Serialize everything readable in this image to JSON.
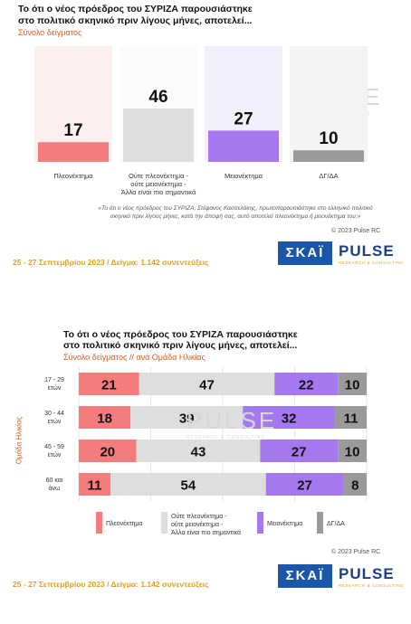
{
  "chart1": {
    "title_line1": "Το ότι ο νέος πρόεδρος του ΣΥΡΙΖΑ παρουσιάστηκε",
    "title_line2": "στο πολιτικό σκηνικό πριν λίγους μήνες, αποτελεί...",
    "subtitle": "Σύνολο δείγματος",
    "footnote_line1": "«Το ότι ο νέος πρόεδρος του ΣΥΡΙΖΑ, Στέφανος Κασσελάκης, πρωτοπαρουσιάστηκε στο ελληνικό πολιτικό",
    "footnote_line2": "σκηνικό πριν λίγους μήνες, κατά την άποψή σας, αυτό αποτελεί πλεονέκτημα ή μειονέκτημα του;»",
    "copyright": "© 2023 Pulse RC"
  },
  "chart2": {
    "title_line1": "Το ότι ο νέος πρόεδρος του ΣΥΡΙΖΑ παρουσιάστηκε",
    "title_line2": "στο πολιτικό σκηνικό πριν λίγους μήνες, αποτελεί...",
    "subtitle": "Σύνολο δείγματος // ανά Ομάδα Ηλικίας",
    "axis_group_label": "Ομάδα Ηλικίας",
    "copyright": "© 2023 Pulse RC"
  },
  "footer": {
    "date_text": "25 - 27 Σεπτεμβρίου 2023 / Δείγμα: 1.142 συνεντεύξεις"
  },
  "logos": {
    "skai": "ΣΚΑΪ",
    "pulse": "PULSE",
    "pulse_sub": "RESEARCH & CONSULTING"
  },
  "watermark": {
    "text": "PULSE",
    "sub": "RESEARCH & CONSULTING"
  },
  "colors": {
    "advantage": "#f47c7c",
    "neither": "#dedede",
    "disadvantage": "#a678f0",
    "dk": "#9a9a9a"
  },
  "chart_data": [
    {
      "type": "bar",
      "categories": [
        "Πλεονέκτημα",
        "Ούτε πλεονέκτημα - ούτε μειονέκτημα - Άλλα είναι πιο σημαντικά",
        "Μειονέκτημα",
        "ΔΓ/ΔΑ"
      ],
      "category_lines": [
        [
          "Πλεονέκτημα"
        ],
        [
          "Ούτε πλεονέκτημα -",
          "ούτε μειονέκτημα -",
          "Άλλα είναι πιο σημαντικά"
        ],
        [
          "Μειονέκτημα"
        ],
        [
          "ΔΓ/ΔΑ"
        ]
      ],
      "values": [
        17,
        46,
        27,
        10
      ],
      "ylim": [
        0,
        100
      ]
    },
    {
      "type": "bar",
      "orientation": "horizontal",
      "stacked": true,
      "categories": [
        "17 - 29 ετών",
        "30 - 44 ετών",
        "45 - 59 ετών",
        "60 και άνω"
      ],
      "category_lines": [
        [
          "17 - 29",
          "ετών"
        ],
        [
          "30 - 44",
          "ετών"
        ],
        [
          "45 - 59",
          "ετών"
        ],
        [
          "60 και",
          "άνω"
        ]
      ],
      "series": [
        {
          "name": "Πλεονέκτημα",
          "values": [
            21,
            18,
            20,
            11
          ]
        },
        {
          "name": "Ούτε πλεονέκτημα - ούτε μειονέκτημα - Άλλα είναι πιο σημαντικά",
          "values": [
            47,
            39,
            43,
            54
          ]
        },
        {
          "name": "Μειονέκτημα",
          "values": [
            22,
            32,
            27,
            27
          ]
        },
        {
          "name": "ΔΓ/ΔΑ",
          "values": [
            10,
            11,
            10,
            8
          ]
        }
      ],
      "legend_lines": [
        [
          "Πλεονέκτημα"
        ],
        [
          "Ούτε πλεονέκτημα -",
          "ούτε μειονέκτημα -",
          "Άλλα είναι πιο σημαντικά"
        ],
        [
          "Μειονέκτημα"
        ],
        [
          "ΔΓ/ΔΑ"
        ]
      ],
      "xlim": [
        0,
        100
      ],
      "xticks": [
        0,
        25,
        50,
        75,
        100
      ],
      "legend_position": "bottom"
    }
  ]
}
